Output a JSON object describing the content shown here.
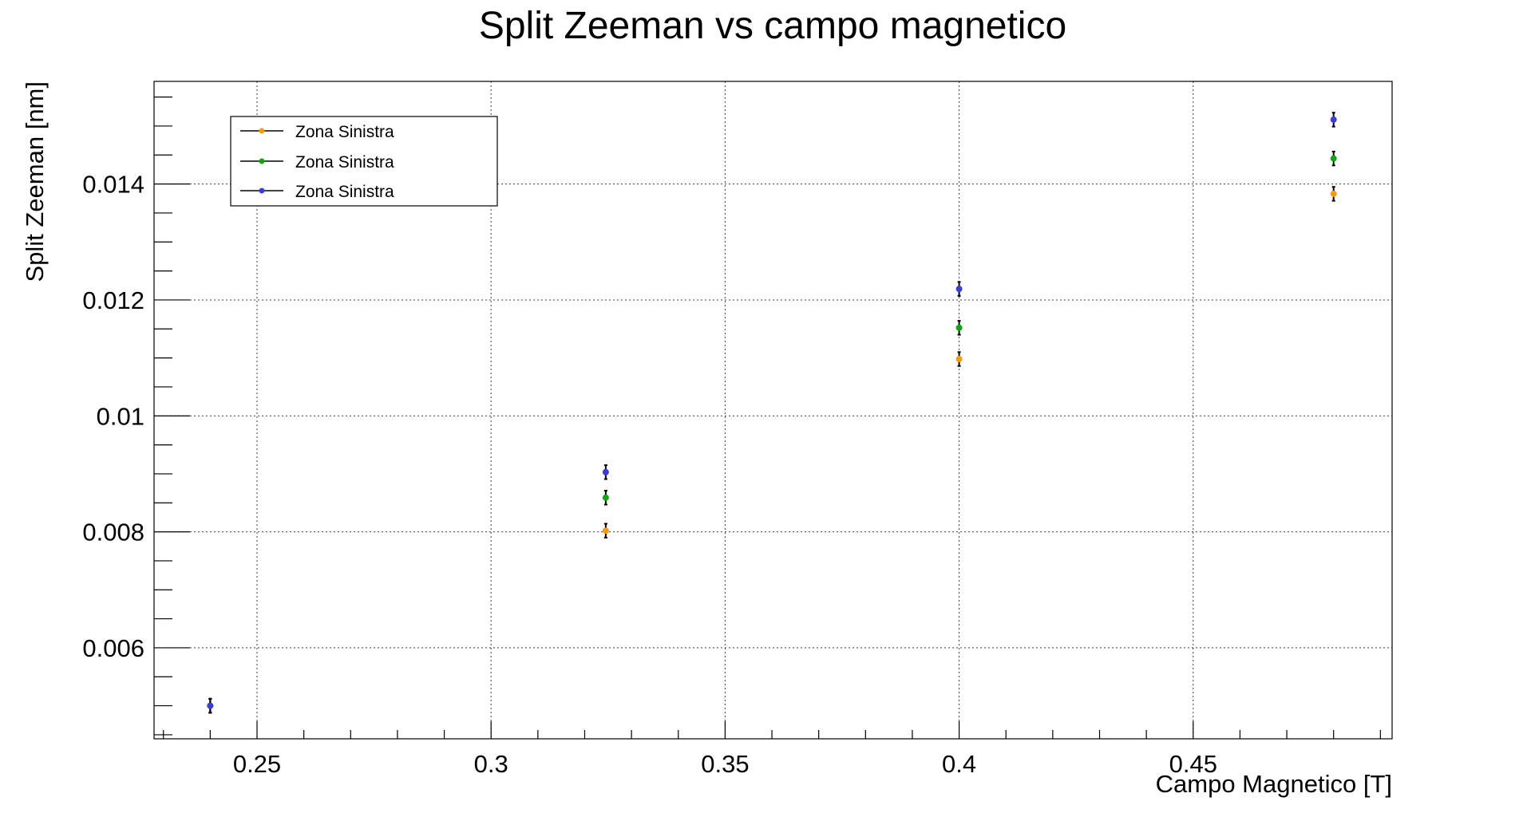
{
  "chart_data": {
    "type": "scatter",
    "title": "Split Zeeman vs campo magnetico",
    "xlabel": "Campo Magnetico [T]",
    "ylabel": "Split Zeeman [nm]",
    "xlim": [
      0.228,
      0.4925
    ],
    "ylim": [
      0.00443,
      0.01577
    ],
    "x_ticks": [
      0.25,
      0.3,
      0.35,
      0.4,
      0.45
    ],
    "x_tick_labels": [
      "0.25",
      "0.3",
      "0.35",
      "0.4",
      "0.45"
    ],
    "y_ticks": [
      0.006,
      0.008,
      0.01,
      0.012,
      0.014
    ],
    "y_tick_labels": [
      "0.006",
      "0.008",
      "0.01",
      "0.012",
      "0.014"
    ],
    "grid": true,
    "legend_position": "top-left",
    "series": [
      {
        "name": "Zona Sinistra",
        "color": "#f39c12",
        "x": [
          0.24,
          0.3245,
          0.4,
          0.48
        ],
        "y": [
          0.005,
          0.00802,
          0.01098,
          0.01383
        ],
        "yerr": [
          0.00012,
          0.00012,
          0.00012,
          0.00012
        ]
      },
      {
        "name": "Zona Sinistra",
        "color": "#13a313",
        "x": [
          0.24,
          0.3245,
          0.4,
          0.48
        ],
        "y": [
          0.005,
          0.00859,
          0.01152,
          0.01444
        ],
        "yerr": [
          0.00012,
          0.00012,
          0.00012,
          0.00012
        ]
      },
      {
        "name": "Zona Sinistra",
        "color": "#3d3dd6",
        "x": [
          0.24,
          0.3245,
          0.4,
          0.48
        ],
        "y": [
          0.005,
          0.00903,
          0.01219,
          0.01511
        ],
        "yerr": [
          0.00012,
          0.00012,
          0.00012,
          0.00012
        ]
      }
    ]
  }
}
